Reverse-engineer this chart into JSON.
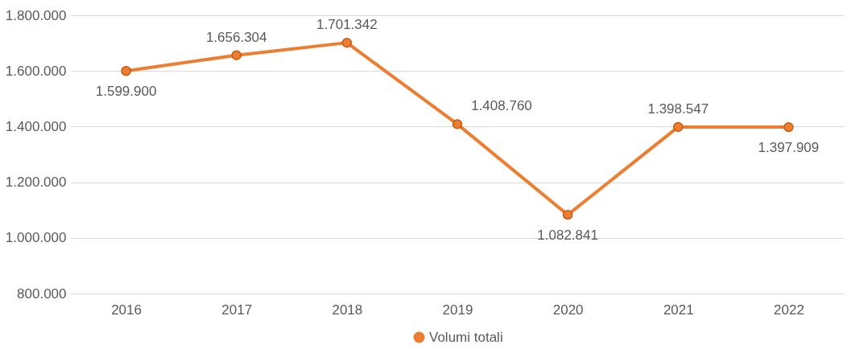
{
  "chart_data": {
    "type": "line",
    "categories": [
      "2016",
      "2017",
      "2018",
      "2019",
      "2020",
      "2021",
      "2022"
    ],
    "series": [
      {
        "name": "Volumi totali",
        "color": "#ed7d31",
        "values": [
          1599900,
          1656304,
          1701342,
          1408760,
          1082841,
          1398547,
          1397909
        ],
        "value_labels": [
          "1.599.900",
          "1.656.304",
          "1.701.342",
          "1.408.760",
          "1.082.841",
          "1.398.547",
          "1.397.909"
        ]
      }
    ],
    "ylim": [
      800000,
      1800000
    ],
    "yticks": [
      {
        "value": 800000,
        "label": "800.000"
      },
      {
        "value": 1000000,
        "label": "1.000.000"
      },
      {
        "value": 1200000,
        "label": "1.200.000"
      },
      {
        "value": 1400000,
        "label": "1.400.000"
      },
      {
        "value": 1600000,
        "label": "1.600.000"
      },
      {
        "value": 1800000,
        "label": "1.800.000"
      }
    ],
    "grid": "y",
    "legend": "bottom",
    "marker": "circle",
    "line_style": "solid"
  }
}
